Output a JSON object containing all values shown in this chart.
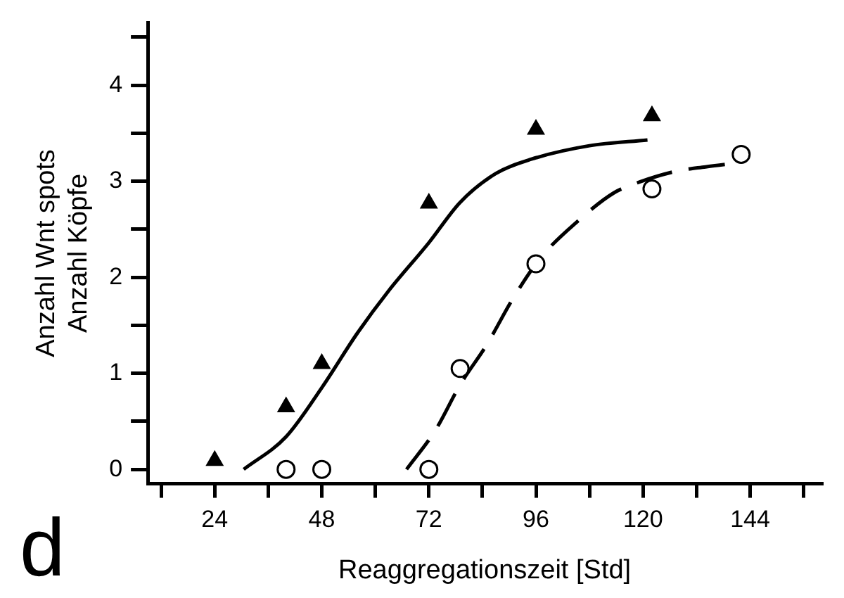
{
  "chart_data": {
    "type": "scatter",
    "xlabel": "Reaggregationszeit [Std]",
    "ylabel": [
      "Anzahl Wnt spots",
      "Anzahl Köpfe"
    ],
    "annotations": [
      "d"
    ],
    "xlim": [
      9,
      160
    ],
    "xticks": [
      {
        "value": 12,
        "label": null
      },
      24,
      {
        "value": 36,
        "label": null
      },
      48,
      {
        "value": 60,
        "label": null
      },
      72,
      {
        "value": 84,
        "label": null
      },
      96,
      {
        "value": 108,
        "label": null
      },
      120,
      {
        "value": 132,
        "label": null
      },
      144,
      {
        "value": 156,
        "label": null
      }
    ],
    "ylim": [
      -0.15,
      4.65
    ],
    "yticks": [
      0,
      {
        "value": 0.5,
        "label": null
      },
      1,
      {
        "value": 1.5,
        "label": null
      },
      2,
      {
        "value": 2.5,
        "label": null
      },
      3,
      {
        "value": 3.5,
        "label": null
      },
      4,
      {
        "value": 4.5,
        "label": null
      }
    ],
    "grid": false,
    "legend": false,
    "series": [
      {
        "color": "#000000",
        "marker": "triangle",
        "x": [
          24,
          40,
          48,
          72,
          96,
          122
        ],
        "values": [
          0.09,
          0.65,
          1.1,
          2.77,
          3.54,
          3.68
        ]
      },
      {
        "color": "#000000",
        "marker": "circle",
        "x": [
          40,
          48,
          72,
          79,
          96,
          122,
          142
        ],
        "values": [
          0,
          0,
          0,
          1.05,
          2.14,
          2.92,
          3.28
        ]
      },
      {
        "type": "line",
        "color": "#000000",
        "marker": "none",
        "line_style": "solid",
        "x": [
          30.5,
          40,
          48,
          56,
          63,
          72,
          79,
          87,
          95,
          108,
          121
        ],
        "values": [
          0,
          0.34,
          0.85,
          1.42,
          1.86,
          2.36,
          2.78,
          3.08,
          3.23,
          3.37,
          3.43
        ]
      },
      {
        "type": "line",
        "color": "#000000",
        "marker": "none",
        "line_style": "dashed",
        "x": [
          67,
          73.5,
          79,
          85,
          91,
          97,
          105.5,
          113.5,
          118.5,
          127,
          134,
          141
        ],
        "values": [
          0,
          0.41,
          0.88,
          1.3,
          1.79,
          2.2,
          2.59,
          2.88,
          2.98,
          3.1,
          3.15,
          3.19
        ]
      }
    ]
  }
}
